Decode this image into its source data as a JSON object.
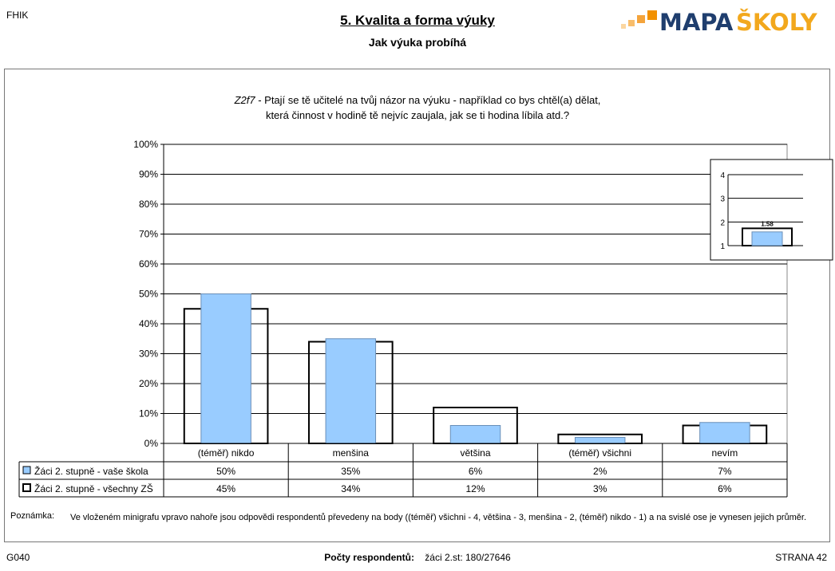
{
  "header": {
    "code": "FHIK",
    "title": "5. Kvalita a forma výuky",
    "subtitle": "Jak výuka probíhá",
    "logo_text_a": "MAPA",
    "logo_text_b": "ŠKOLY"
  },
  "question": {
    "code": "Z2f7",
    "line1": " - Ptají se tě učitelé na tvůj názor na výuku - například co bys chtěl(a) dělat,",
    "line2": "která činnost v hodině tě nejvíc zaujala, jak se ti hodina líbila atd.?"
  },
  "chart_data": {
    "type": "bar",
    "categories": [
      "(téměř) nikdo",
      "menšina",
      "většina",
      "(téměř) všichni",
      "nevím"
    ],
    "series": [
      {
        "name": "Žáci 2. stupně - vaše škola",
        "values": [
          50,
          35,
          6,
          2,
          7
        ],
        "labels": [
          "50%",
          "35%",
          "6%",
          "2%",
          "7%"
        ],
        "style": "filled"
      },
      {
        "name": "Žáci 2. stupně - všechny ZŠ",
        "values": [
          45,
          34,
          12,
          3,
          6
        ],
        "labels": [
          "45%",
          "34%",
          "12%",
          "3%",
          "6%"
        ],
        "style": "outline"
      }
    ],
    "yticks": [
      "0%",
      "10%",
      "20%",
      "30%",
      "40%",
      "50%",
      "60%",
      "70%",
      "80%",
      "90%",
      "100%"
    ],
    "ylim": [
      0,
      100
    ],
    "grid": true,
    "colors": {
      "fill": "#99ccff",
      "outline": "#000000",
      "grid": "#000000"
    },
    "inset": {
      "type": "bar",
      "value": 1.58,
      "value_label": "1.58",
      "benchmark": 1.73,
      "yticks": [
        "1",
        "2",
        "3",
        "4"
      ],
      "ylim": [
        1,
        4
      ]
    }
  },
  "note": {
    "label": "Poznámka:",
    "text": "Ve vloženém minigrafu vpravo nahoře jsou odpovědi respondentů převedeny na body ((téměř) všichni - 4, většina - 3, menšina - 2, (téměř) nikdo - 1) a na svislé ose je vynesen jejich průměr."
  },
  "footer": {
    "left": "G040",
    "center_label": "Počty respondentů:",
    "center_value": "žáci 2.st: 180/27646",
    "right": "STRANA 42"
  }
}
